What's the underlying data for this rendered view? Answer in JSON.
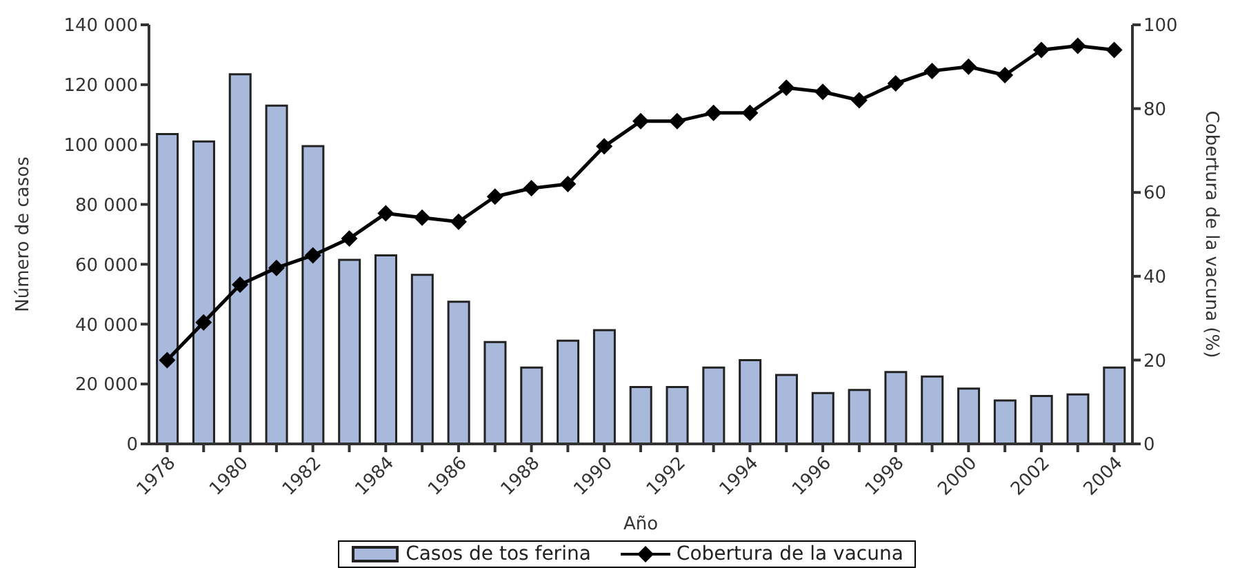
{
  "chart_data": {
    "type": "bar",
    "xlabel": "Año",
    "ylabel": "Número de casos",
    "y2label": "Cobertura de la vacuna (%)",
    "categories": [
      "1978",
      null,
      "1980",
      null,
      "1982",
      null,
      "1984",
      null,
      "1986",
      null,
      "1988",
      null,
      "1990",
      null,
      "1992",
      null,
      "1994",
      null,
      "1996",
      null,
      "1998",
      null,
      "2000",
      null,
      "2002",
      null,
      "2004"
    ],
    "series": [
      {
        "name": "Casos de tos ferina",
        "color": "#a9b9dc",
        "values": [
          103500,
          101000,
          123500,
          113000,
          99500,
          61500,
          63000,
          56500,
          47500,
          34000,
          25500,
          34500,
          38000,
          19000,
          19000,
          25500,
          28000,
          23000,
          17000,
          18000,
          24000,
          22500,
          18500,
          14500,
          16000,
          16500,
          25500
        ]
      },
      {
        "name": "Cobertura de la vacuna",
        "type": "line",
        "axis": "y2",
        "color": "#000000",
        "marker": "diamond",
        "values": [
          20,
          29,
          38,
          42,
          45,
          49,
          55,
          54,
          53,
          59,
          61,
          62,
          71,
          77,
          77,
          79,
          79,
          85,
          84,
          82,
          86,
          89,
          90,
          88,
          94,
          95,
          94
        ]
      }
    ],
    "ylim": [
      0,
      140000
    ],
    "yticks": [
      {
        "value": 0,
        "label": "0"
      },
      {
        "value": 20000,
        "label": "20 000"
      },
      {
        "value": 40000,
        "label": "40 000"
      },
      {
        "value": 60000,
        "label": "60 000"
      },
      {
        "value": 80000,
        "label": "80 000"
      },
      {
        "value": 100000,
        "label": "100 000"
      },
      {
        "value": 120000,
        "label": "120 000"
      },
      {
        "value": 140000,
        "label": "140 000"
      }
    ],
    "y2lim": [
      0,
      100
    ],
    "y2ticks": [
      0,
      20,
      40,
      60,
      80,
      100
    ],
    "grid": false,
    "legend": "bottom"
  }
}
